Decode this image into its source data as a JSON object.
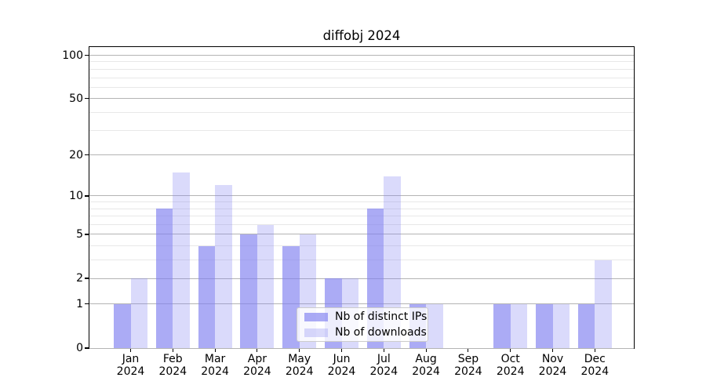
{
  "title": "diffobj 2024",
  "legend": {
    "items": [
      {
        "label": "Nb of distinct IPs",
        "color": "rgba(128,128,240,0.66)"
      },
      {
        "label": "Nb of downloads",
        "color": "rgba(128,128,240,0.29)"
      }
    ]
  },
  "chart_data": {
    "type": "bar",
    "title": "diffobj 2024",
    "categories": [
      "Jan",
      "Feb",
      "Mar",
      "Apr",
      "May",
      "Jun",
      "Jul",
      "Aug",
      "Sep",
      "Oct",
      "Nov",
      "Dec"
    ],
    "category_year": "2024",
    "series": [
      {
        "name": "Nb of distinct IPs",
        "color": "rgba(128,128,240,0.66)",
        "values": [
          1,
          8,
          4,
          5,
          4,
          2,
          8,
          1,
          0,
          1,
          1,
          1
        ]
      },
      {
        "name": "Nb of downloads",
        "color": "rgba(128,128,240,0.29)",
        "values": [
          2,
          15,
          12,
          6,
          5,
          2,
          14,
          1,
          0,
          1,
          1,
          3
        ]
      }
    ],
    "xlabel": "",
    "ylabel": "",
    "yscale": "log1p",
    "ylim": [
      0,
      114
    ],
    "y_major_ticks": [
      0,
      1,
      2,
      5,
      10,
      20,
      50,
      100
    ],
    "y_minor_ticks": [
      3,
      4,
      6,
      7,
      8,
      9,
      30,
      40,
      60,
      70,
      80,
      90
    ],
    "grid": true,
    "legend_position": "lower center"
  },
  "colors": {
    "major_grid": "#b4b4b4",
    "minor_grid": "#e8e8e8",
    "axis": "#000000",
    "background": "#ffffff"
  }
}
